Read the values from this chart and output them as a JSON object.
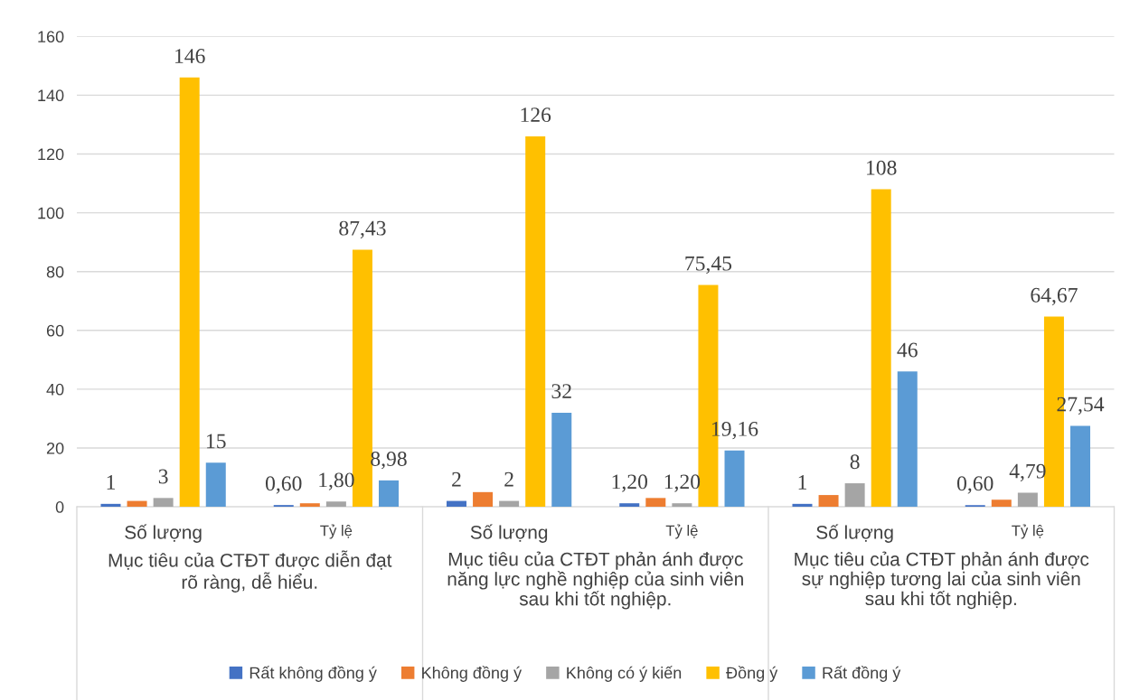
{
  "chart_data": {
    "type": "bar",
    "categories": [
      "Số lượng",
      "Tỷ lệ",
      "Số lượng",
      "Tỷ lệ",
      "Số lượng",
      "Tỷ lệ"
    ],
    "annotations": [
      "Mục tiêu của CTĐT được diễn đạt\nrõ ràng, dễ hiểu.",
      "Mục tiêu của CTĐT phản ánh được\nnăng lực nghề nghiệp của sinh viên\nsau khi tốt nghiệp.",
      "Mục tiêu của CTĐT phản ánh được\nsự nghiệp tương lai của sinh viên\nsau khi tốt nghiệp."
    ],
    "series": [
      {
        "name": "Rất không đồng ý",
        "color": "#4472c4",
        "values": [
          1,
          0.6,
          2,
          1.2,
          1,
          0.6
        ],
        "value_labels": [
          "1",
          "0,60",
          "2",
          "1,20",
          "1",
          "0,60"
        ]
      },
      {
        "name": "Không đồng ý",
        "color": "#ed7d31",
        "values": [
          2,
          1.2,
          5,
          3,
          4,
          2.4
        ]
      },
      {
        "name": "Không có ý kiến",
        "color": "#a5a5a5",
        "values": [
          3,
          1.8,
          2,
          1.2,
          8,
          4.79
        ],
        "value_labels": [
          "3",
          "1,80",
          "2",
          "1,20",
          "8",
          "4,79"
        ]
      },
      {
        "name": "Đồng ý",
        "color": "#ffc000",
        "values": [
          146,
          87.43,
          126,
          75.45,
          108,
          64.67
        ],
        "value_labels": [
          "146",
          "87,43",
          "126",
          "75,45",
          "108",
          "64,67"
        ]
      },
      {
        "name": "Rất đồng ý",
        "color": "#5b9bd5",
        "values": [
          15,
          8.98,
          32,
          19.16,
          46,
          27.54
        ],
        "value_labels": [
          "15",
          "8,98",
          "32",
          "19,16",
          "46",
          "27,54"
        ]
      }
    ],
    "ylim": [
      0,
      160
    ],
    "yticks": [
      0,
      20,
      40,
      60,
      80,
      100,
      120,
      140,
      160
    ],
    "grid": "y",
    "legend": "bottom"
  }
}
